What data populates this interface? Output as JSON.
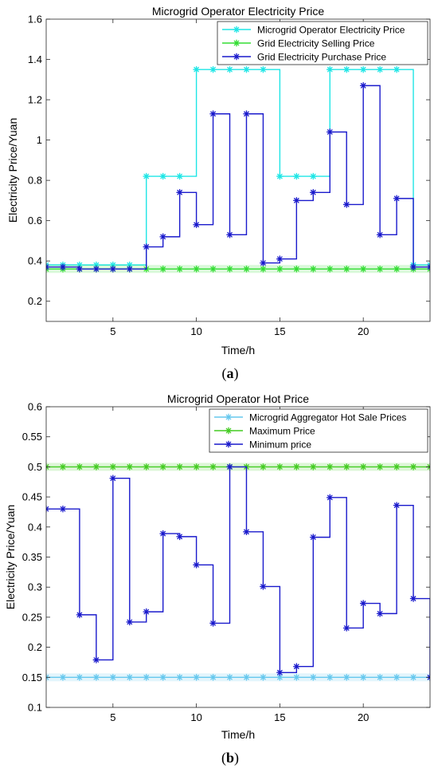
{
  "chart_data": [
    {
      "type": "line",
      "step": true,
      "title": "Microgrid Operator Electricity Price",
      "xlabel": "Time/h",
      "ylabel": "Electricity Price/Yuan",
      "xlim": [
        1,
        24
      ],
      "ylim": [
        0.1,
        1.6
      ],
      "xticks": [
        5,
        10,
        15,
        20
      ],
      "yticks": [
        0.2,
        0.4,
        0.6,
        0.8,
        1,
        1.2,
        1.4,
        1.6
      ],
      "ytick_labels": [
        "0.2",
        "0.4",
        "0.6",
        "0.8",
        "1",
        "1.2",
        "1.4",
        "1.6"
      ],
      "grid": false,
      "legend_position": "top-right",
      "caption": "a",
      "series": [
        {
          "name": "Microgrid Operator Electricity Price",
          "color": "#1ee6e6",
          "marker": "asterisk",
          "x": [
            1,
            2,
            3,
            4,
            5,
            6,
            7,
            8,
            9,
            10,
            11,
            12,
            13,
            14,
            15,
            16,
            17,
            18,
            19,
            20,
            21,
            22,
            23,
            24
          ],
          "values": [
            0.38,
            0.38,
            0.38,
            0.38,
            0.38,
            0.38,
            0.82,
            0.82,
            0.82,
            1.35,
            1.35,
            1.35,
            1.35,
            1.35,
            0.82,
            0.82,
            0.82,
            1.35,
            1.35,
            1.35,
            1.35,
            1.35,
            0.38,
            0.38
          ]
        },
        {
          "name": "Grid Electricity Selling Price",
          "color": "#33dd33",
          "marker": "asterisk",
          "x": [
            1,
            2,
            3,
            4,
            5,
            6,
            7,
            8,
            9,
            10,
            11,
            12,
            13,
            14,
            15,
            16,
            17,
            18,
            19,
            20,
            21,
            22,
            23,
            24
          ],
          "values": [
            0.36,
            0.36,
            0.36,
            0.36,
            0.36,
            0.36,
            0.36,
            0.36,
            0.36,
            0.36,
            0.36,
            0.36,
            0.36,
            0.36,
            0.36,
            0.36,
            0.36,
            0.36,
            0.36,
            0.36,
            0.36,
            0.36,
            0.36,
            0.36
          ]
        },
        {
          "name": "Grid Electricity Purchase Price",
          "color": "#1a1acc",
          "marker": "asterisk",
          "x": [
            1,
            2,
            3,
            4,
            5,
            6,
            7,
            8,
            9,
            10,
            11,
            12,
            13,
            14,
            15,
            16,
            17,
            18,
            19,
            20,
            21,
            22,
            23,
            24
          ],
          "values": [
            0.37,
            0.37,
            0.36,
            0.36,
            0.36,
            0.36,
            0.47,
            0.52,
            0.74,
            0.58,
            1.13,
            0.53,
            1.13,
            0.39,
            0.41,
            0.7,
            0.74,
            1.04,
            0.68,
            1.27,
            0.53,
            0.71,
            0.37,
            0.37
          ]
        }
      ]
    },
    {
      "type": "line",
      "step": true,
      "title": "Microgrid Operator Hot Price",
      "xlabel": "Time/h",
      "ylabel": "Electricity Price/Yuan",
      "xlim": [
        1,
        24
      ],
      "ylim": [
        0.1,
        0.6
      ],
      "xticks": [
        5,
        10,
        15,
        20
      ],
      "yticks": [
        0.1,
        0.15,
        0.2,
        0.25,
        0.3,
        0.35,
        0.4,
        0.45,
        0.5,
        0.55,
        0.6
      ],
      "ytick_labels": [
        "0.1",
        "0.15",
        "0.2",
        "0.25",
        "0.3",
        "0.35",
        "0.4",
        "0.45",
        "0.5",
        "0.55",
        "0.6"
      ],
      "grid": false,
      "legend_position": "top-right",
      "caption": "b",
      "series": [
        {
          "name": "Microgrid Aggregator Hot Sale Prices",
          "color": "#66c8ee",
          "marker": "asterisk",
          "x": [
            1,
            2,
            3,
            4,
            5,
            6,
            7,
            8,
            9,
            10,
            11,
            12,
            13,
            14,
            15,
            16,
            17,
            18,
            19,
            20,
            21,
            22,
            23,
            24
          ],
          "values": [
            0.15,
            0.15,
            0.15,
            0.15,
            0.15,
            0.15,
            0.15,
            0.15,
            0.15,
            0.15,
            0.15,
            0.15,
            0.15,
            0.15,
            0.15,
            0.15,
            0.15,
            0.15,
            0.15,
            0.15,
            0.15,
            0.15,
            0.15,
            0.15
          ]
        },
        {
          "name": "Maximum Price",
          "color": "#44cc22",
          "marker": "asterisk",
          "x": [
            1,
            2,
            3,
            4,
            5,
            6,
            7,
            8,
            9,
            10,
            11,
            12,
            13,
            14,
            15,
            16,
            17,
            18,
            19,
            20,
            21,
            22,
            23,
            24
          ],
          "values": [
            0.5,
            0.5,
            0.5,
            0.5,
            0.5,
            0.5,
            0.5,
            0.5,
            0.5,
            0.5,
            0.5,
            0.5,
            0.5,
            0.5,
            0.5,
            0.5,
            0.5,
            0.5,
            0.5,
            0.5,
            0.5,
            0.5,
            0.5,
            0.5
          ]
        },
        {
          "name": "Minimum price",
          "color": "#1a1acc",
          "marker": "asterisk",
          "x": [
            1,
            2,
            3,
            4,
            5,
            6,
            7,
            8,
            9,
            10,
            11,
            12,
            13,
            14,
            15,
            16,
            17,
            18,
            19,
            20,
            21,
            22,
            23,
            24
          ],
          "values": [
            0.43,
            0.43,
            0.254,
            0.179,
            0.481,
            0.242,
            0.259,
            0.389,
            0.384,
            0.337,
            0.24,
            0.5,
            0.392,
            0.301,
            0.158,
            0.168,
            0.383,
            0.449,
            0.232,
            0.273,
            0.256,
            0.436,
            0.281,
            0.15
          ]
        }
      ]
    }
  ]
}
